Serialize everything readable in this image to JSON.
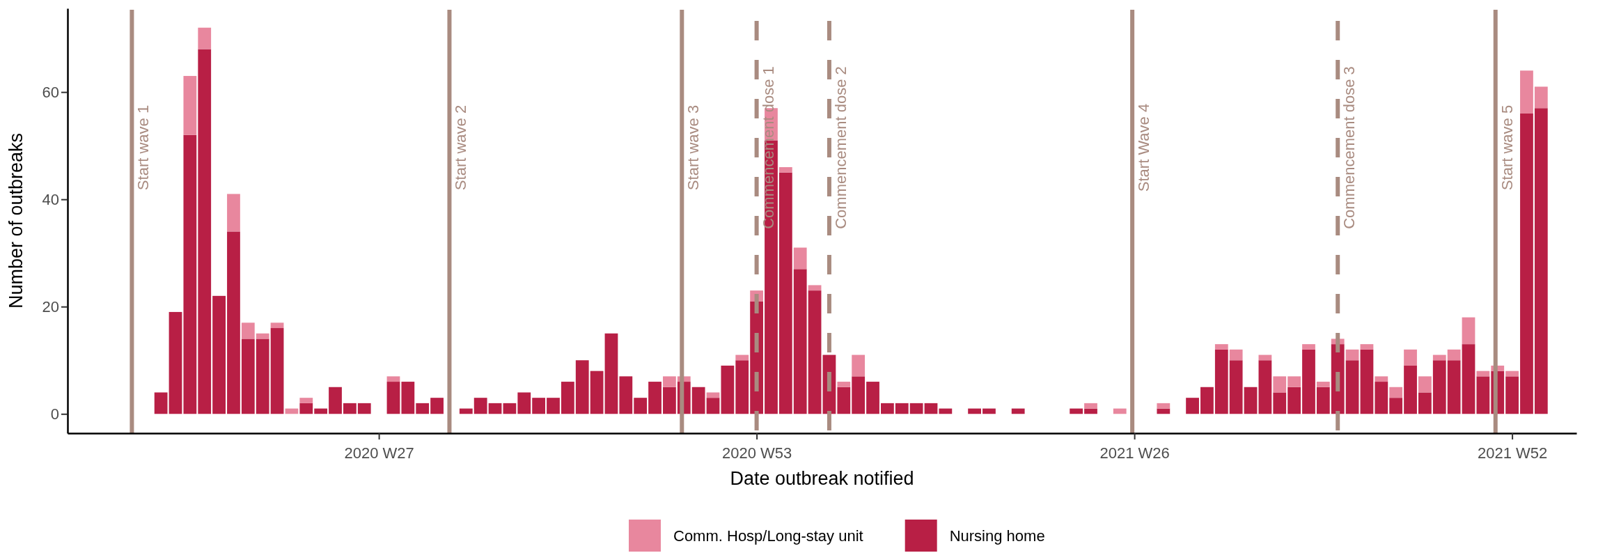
{
  "chart_data": {
    "type": "bar",
    "stacked": true,
    "xlabel": "Date outbreak notified",
    "ylabel": "Number of outbreaks",
    "legend": "bottom",
    "x": [
      "2020-03-16",
      "2020-03-23",
      "2020-03-30",
      "2020-04-06",
      "2020-04-13",
      "2020-04-20",
      "2020-04-27",
      "2020-05-04",
      "2020-05-11",
      "2020-05-18",
      "2020-05-25",
      "2020-06-01",
      "2020-06-08",
      "2020-06-15",
      "2020-06-22",
      "2020-06-29",
      "2020-07-06",
      "2020-07-13",
      "2020-07-20",
      "2020-07-27",
      "2020-08-03",
      "2020-08-10",
      "2020-08-17",
      "2020-08-24",
      "2020-08-31",
      "2020-09-07",
      "2020-09-14",
      "2020-09-21",
      "2020-09-28",
      "2020-10-05",
      "2020-10-12",
      "2020-10-19",
      "2020-10-26",
      "2020-11-02",
      "2020-11-09",
      "2020-11-16",
      "2020-11-23",
      "2020-11-30",
      "2020-12-07",
      "2020-12-14",
      "2020-12-21",
      "2020-12-28",
      "2021-01-04",
      "2021-01-11",
      "2021-01-18",
      "2021-01-25",
      "2021-02-01",
      "2021-02-08",
      "2021-02-15",
      "2021-02-22",
      "2021-03-01",
      "2021-03-08",
      "2021-03-15",
      "2021-03-22",
      "2021-03-29",
      "2021-04-05",
      "2021-04-12",
      "2021-04-19",
      "2021-04-26",
      "2021-05-03",
      "2021-05-10",
      "2021-05-17",
      "2021-05-24",
      "2021-05-31",
      "2021-06-07",
      "2021-06-14",
      "2021-06-21",
      "2021-06-28",
      "2021-07-05",
      "2021-07-12",
      "2021-07-19",
      "2021-07-26",
      "2021-08-02",
      "2021-08-09",
      "2021-08-16",
      "2021-08-23",
      "2021-08-30",
      "2021-09-06",
      "2021-09-13",
      "2021-09-20",
      "2021-09-27",
      "2021-10-04",
      "2021-10-11",
      "2021-10-18",
      "2021-10-25",
      "2021-11-01",
      "2021-11-08",
      "2021-11-15",
      "2021-11-22",
      "2021-11-29",
      "2021-12-06",
      "2021-12-13",
      "2021-12-20",
      "2021-12-27",
      "2022-01-03",
      "2022-01-10"
    ],
    "series": [
      {
        "name": "Nursing home",
        "color": "#b81f45",
        "values": [
          4,
          19,
          52,
          68,
          22,
          34,
          14,
          14,
          16,
          0,
          2,
          1,
          5,
          2,
          2,
          0,
          6,
          6,
          2,
          3,
          0,
          1,
          3,
          2,
          2,
          4,
          3,
          3,
          6,
          10,
          8,
          15,
          7,
          3,
          6,
          5,
          6,
          5,
          3,
          9,
          10,
          21,
          51,
          45,
          27,
          23,
          11,
          5,
          7,
          6,
          2,
          2,
          2,
          2,
          1,
          0,
          1,
          1,
          0,
          1,
          0,
          0,
          0,
          1,
          1,
          0,
          0,
          0,
          0,
          1,
          0,
          3,
          5,
          12,
          10,
          5,
          10,
          4,
          5,
          12,
          5,
          13,
          10,
          12,
          6,
          3,
          9,
          4,
          10,
          10,
          13,
          7,
          8,
          7,
          56,
          57
        ]
      },
      {
        "name": "Comm. Hosp/Long-stay unit",
        "color": "#e8879e",
        "values": [
          0,
          0,
          11,
          4,
          0,
          7,
          3,
          1,
          1,
          1,
          1,
          0,
          0,
          0,
          0,
          0,
          1,
          0,
          0,
          0,
          0,
          0,
          0,
          0,
          0,
          0,
          0,
          0,
          0,
          0,
          0,
          0,
          0,
          0,
          0,
          2,
          1,
          0,
          1,
          0,
          1,
          2,
          6,
          1,
          4,
          1,
          0,
          1,
          4,
          0,
          0,
          0,
          0,
          0,
          0,
          0,
          0,
          0,
          0,
          0,
          0,
          0,
          0,
          0,
          1,
          0,
          1,
          0,
          0,
          1,
          0,
          0,
          0,
          1,
          2,
          0,
          1,
          3,
          2,
          1,
          1,
          1,
          2,
          1,
          1,
          2,
          3,
          3,
          1,
          2,
          5,
          1,
          1,
          1,
          8,
          4
        ]
      }
    ],
    "xlim": [
      "2020-01-31",
      "2022-01-27"
    ],
    "xticks": [
      {
        "value": "2020-06-29",
        "label": "2020 W27"
      },
      {
        "value": "2020-12-28",
        "label": "2020 W53"
      },
      {
        "value": "2021-06-28",
        "label": "2021 W26"
      },
      {
        "value": "2021-12-27",
        "label": "2021 W52"
      }
    ],
    "ylim": [
      -3.6,
      75.6
    ],
    "yticks": [
      0,
      20,
      40,
      60
    ],
    "ref_lines": [
      {
        "axis": "x",
        "value": "2020-03-02",
        "label": "Start wave 1",
        "color": "#a98b80",
        "line_style": "solid"
      },
      {
        "axis": "x",
        "value": "2020-08-02",
        "label": "Start wave 2",
        "color": "#a98b80",
        "line_style": "solid"
      },
      {
        "axis": "x",
        "value": "2020-11-22",
        "label": "Start wave 3",
        "color": "#a98b80",
        "line_style": "solid"
      },
      {
        "axis": "x",
        "value": "2020-12-28",
        "label": "Commencement dose 1",
        "color": "#a98b80",
        "line_style": "dashed"
      },
      {
        "axis": "x",
        "value": "2021-02-01",
        "label": "Commencement dose 2",
        "color": "#a98b80",
        "line_style": "dashed"
      },
      {
        "axis": "x",
        "value": "2021-06-27",
        "label": "Start Wave 4",
        "color": "#a98b80",
        "line_style": "solid"
      },
      {
        "axis": "x",
        "value": "2021-10-04",
        "label": "Commencement dose 3",
        "color": "#a98b80",
        "line_style": "dashed"
      },
      {
        "axis": "x",
        "value": "2021-12-19",
        "label": "Start wave 5",
        "color": "#a98b80",
        "line_style": "solid"
      }
    ]
  }
}
